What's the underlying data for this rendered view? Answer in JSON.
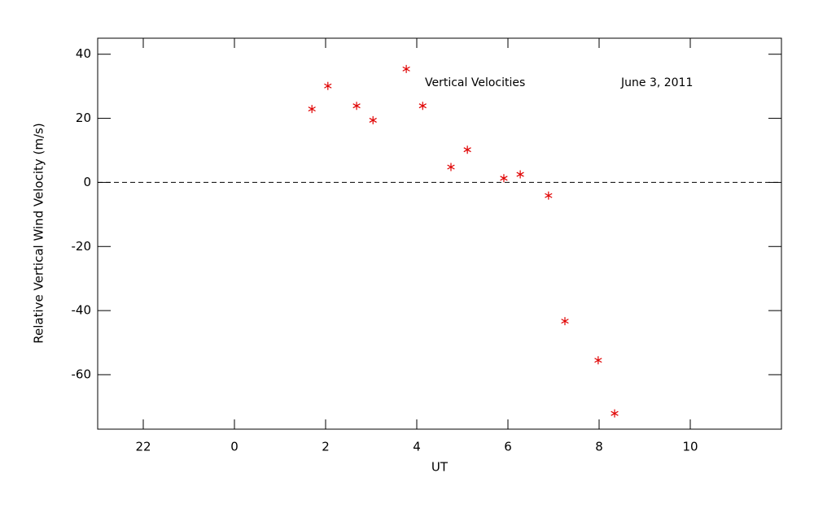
{
  "chart_data": {
    "type": "scatter",
    "xlabel": "UT",
    "ylabel": "Relative Vertical Wind Velocity (m/s)",
    "annotations": [
      "Vertical Velocities",
      "June 3, 2011"
    ],
    "series": [
      {
        "color": "#e00000",
        "x": [
          1.7,
          2.05,
          2.68,
          3.04,
          3.77,
          4.13,
          4.75,
          5.11,
          5.91,
          6.27,
          6.89,
          7.25,
          7.98,
          8.34
        ],
        "values": [
          22.9,
          30.1,
          23.9,
          19.4,
          35.4,
          23.9,
          4.8,
          10.2,
          1.3,
          2.5,
          -4.1,
          -43.3,
          -55.5,
          -72.1
        ]
      }
    ],
    "xlim": [
      -3,
      12
    ],
    "xticks": [
      {
        "value": -2,
        "label": "22"
      },
      0,
      2,
      4,
      6,
      8,
      10
    ],
    "ylim": [
      -77,
      45
    ],
    "yticks": [
      -60,
      -40,
      -20,
      0,
      20,
      40
    ],
    "reference_line": 0
  }
}
